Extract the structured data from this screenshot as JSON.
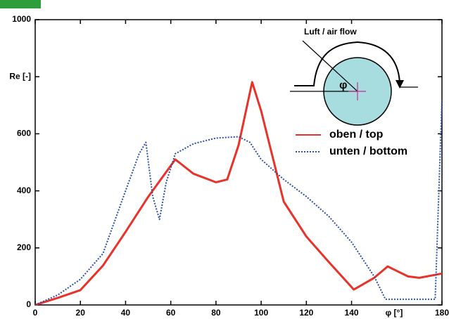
{
  "chart_data": {
    "type": "line",
    "x_label": "φ [°]",
    "annotations": {
      "flow": "Luft / air flow",
      "angle": "φ"
    },
    "xlim": [
      0,
      180
    ],
    "xticks": [
      0,
      20,
      40,
      60,
      80,
      100,
      120,
      140,
      180
    ],
    "ylim": [
      0,
      1000
    ],
    "yticks": [
      0,
      200,
      400,
      600,
      {
        "value": 800,
        "label": "Re [-]"
      },
      1000
    ],
    "series": [
      {
        "name": "oben / top",
        "color": "#e8322a",
        "style": "solid",
        "x": [
          0,
          10,
          20,
          30,
          40,
          50,
          62,
          70,
          80,
          85,
          90,
          96,
          100,
          110,
          120,
          130,
          141,
          150,
          156,
          165,
          170,
          180
        ],
        "values": [
          0,
          25,
          52,
          138,
          256,
          379,
          510,
          460,
          430,
          440,
          560,
          781,
          680,
          362,
          240,
          150,
          54,
          95,
          135,
          100,
          95,
          110
        ]
      },
      {
        "name": "unten / bottom",
        "color": "#2b4fa8",
        "style": "dotted",
        "x": [
          0,
          10,
          20,
          30,
          40,
          46,
          49,
          52,
          55,
          58,
          62,
          70,
          80,
          90,
          95,
          100,
          110,
          120,
          130,
          140,
          150,
          155,
          160,
          170,
          177,
          180
        ],
        "values": [
          0,
          35,
          90,
          180,
          400,
          530,
          570,
          380,
          300,
          430,
          530,
          565,
          585,
          590,
          570,
          510,
          440,
          380,
          310,
          220,
          100,
          20,
          20,
          20,
          20,
          720
        ]
      }
    ]
  }
}
